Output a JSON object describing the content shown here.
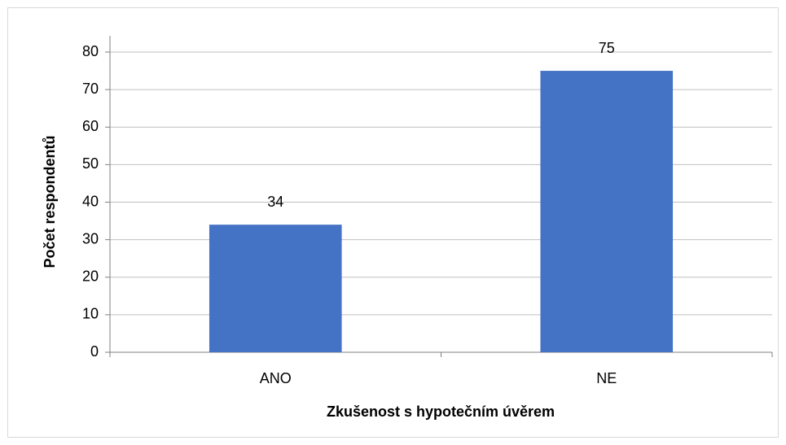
{
  "chart_data": {
    "type": "bar",
    "categories": [
      "ANO",
      "NE"
    ],
    "values": [
      34,
      75
    ],
    "color": "#4472c4",
    "xlabel": "Zkušenost s hypotečním úvěrem",
    "ylabel": "Počet respondentů",
    "ylim": [
      0,
      80
    ],
    "yticks": [
      0,
      10,
      20,
      30,
      40,
      50,
      60,
      70,
      80
    ],
    "grid": true
  }
}
